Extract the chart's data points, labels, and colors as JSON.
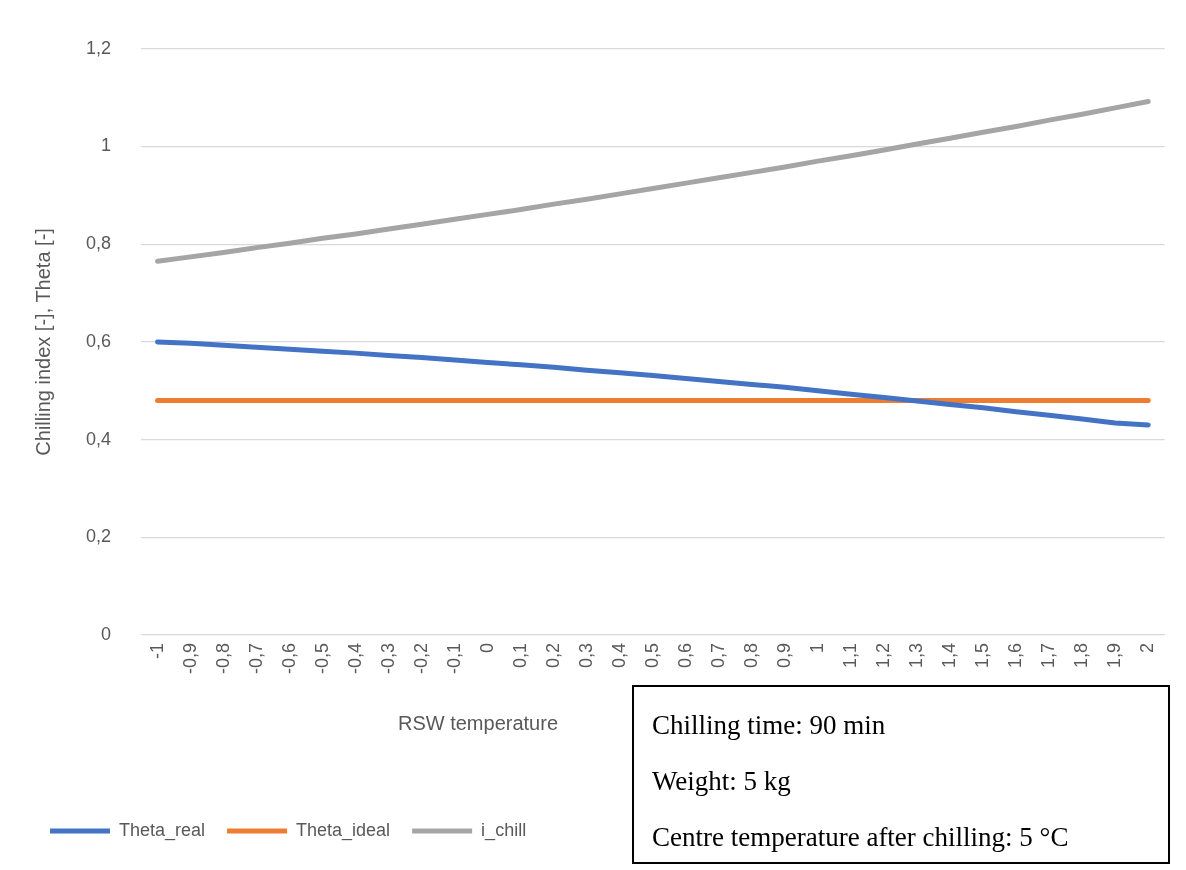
{
  "chart_data": {
    "type": "line",
    "xlabel": "RSW temperature",
    "ylabel": "Chilling index [-], Theta [-]",
    "categories": [
      "-1",
      "-0,9",
      "-0,8",
      "-0,7",
      "-0,6",
      "-0,5",
      "-0,4",
      "-0,3",
      "-0,2",
      "-0,1",
      "0",
      "0,1",
      "0,2",
      "0,3",
      "0,4",
      "0,5",
      "0,6",
      "0,7",
      "0,8",
      "0,9",
      "1",
      "1,1",
      "1,2",
      "1,3",
      "1,4",
      "1,5",
      "1,6",
      "1,7",
      "1,8",
      "1,9",
      "2"
    ],
    "series": [
      {
        "name": "Theta_real",
        "color": "#4472c4",
        "values": [
          0.6,
          0.597,
          0.593,
          0.589,
          0.585,
          0.581,
          0.577,
          0.572,
          0.568,
          0.563,
          0.558,
          0.553,
          0.548,
          0.542,
          0.537,
          0.531,
          0.525,
          0.519,
          0.513,
          0.507,
          0.5,
          0.493,
          0.486,
          0.479,
          0.472,
          0.465,
          0.457,
          0.45,
          0.442,
          0.434,
          0.43
        ]
      },
      {
        "name": "Theta_ideal",
        "color": "#ed7d31",
        "values": [
          0.48,
          0.48,
          0.48,
          0.48,
          0.48,
          0.48,
          0.48,
          0.48,
          0.48,
          0.48,
          0.48,
          0.48,
          0.48,
          0.48,
          0.48,
          0.48,
          0.48,
          0.48,
          0.48,
          0.48,
          0.48,
          0.48,
          0.48,
          0.48,
          0.48,
          0.48,
          0.48,
          0.48,
          0.48,
          0.48,
          0.48
        ]
      },
      {
        "name": "i_chill",
        "color": "#a5a5a5",
        "values": [
          0.765,
          0.774,
          0.783,
          0.793,
          0.802,
          0.812,
          0.821,
          0.831,
          0.841,
          0.851,
          0.861,
          0.871,
          0.882,
          0.892,
          0.903,
          0.914,
          0.925,
          0.936,
          0.947,
          0.958,
          0.97,
          0.981,
          0.993,
          1.005,
          1.017,
          1.029,
          1.041,
          1.054,
          1.066,
          1.079,
          1.092
        ]
      }
    ],
    "ylim": [
      0,
      1.2
    ],
    "yticks": [
      0,
      {
        "value": 0.2,
        "label": "0,2"
      },
      {
        "value": 0.4,
        "label": "0,4"
      },
      {
        "value": 0.6,
        "label": "0,6"
      },
      {
        "value": 0.8,
        "label": "0,8"
      },
      1,
      {
        "value": 1.2,
        "label": "1,2"
      }
    ],
    "grid": "y",
    "legend": "bottom left",
    "marker": "none",
    "line_style": "solid",
    "annotations": [
      "Chilling time: 90 min",
      "Weight: 5 kg",
      "Centre temperature after chilling: 5 °C"
    ]
  }
}
